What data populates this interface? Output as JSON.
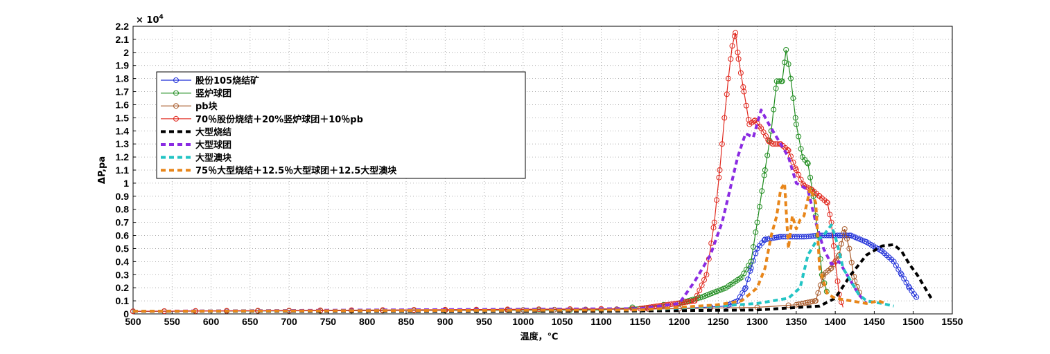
{
  "chart_data": {
    "type": "line",
    "xlabel": "温度，℃",
    "ylabel": "ΔP,pa",
    "y_multiplier": "× 10",
    "y_multiplier_exp": "4",
    "xlim": [
      500,
      1550
    ],
    "ylim": [
      0,
      2.2
    ],
    "x_ticks": [
      500,
      550,
      600,
      650,
      700,
      750,
      800,
      850,
      900,
      950,
      1000,
      1050,
      1100,
      1150,
      1200,
      1250,
      1300,
      1350,
      1400,
      1450,
      1500,
      1550
    ],
    "y_ticks": [
      0,
      0.1,
      0.2,
      0.3,
      0.4,
      0.5,
      0.6,
      0.7,
      0.8,
      0.9,
      1,
      1.1,
      1.2,
      1.3,
      1.4,
      1.5,
      1.6,
      1.7,
      1.8,
      1.9,
      2,
      2.1,
      2.2
    ],
    "grid": true,
    "legend_position": "top-left",
    "series": [
      {
        "name": "股份105烧结矿",
        "color": "#1f2fd8",
        "style": "circle-line",
        "points": [
          [
            500,
            0.02
          ],
          [
            1000,
            0.03
          ],
          [
            1200,
            0.04
          ],
          [
            1260,
            0.06
          ],
          [
            1275,
            0.1
          ],
          [
            1285,
            0.2
          ],
          [
            1292,
            0.35
          ],
          [
            1300,
            0.5
          ],
          [
            1310,
            0.57
          ],
          [
            1330,
            0.59
          ],
          [
            1360,
            0.59
          ],
          [
            1380,
            0.6
          ],
          [
            1400,
            0.6
          ],
          [
            1420,
            0.6
          ],
          [
            1440,
            0.55
          ],
          [
            1460,
            0.48
          ],
          [
            1475,
            0.4
          ],
          [
            1485,
            0.3
          ],
          [
            1495,
            0.2
          ],
          [
            1505,
            0.12
          ]
        ]
      },
      {
        "name": "竖炉球团",
        "color": "#1e8c1e",
        "style": "circle-line",
        "points": [
          [
            500,
            0.02
          ],
          [
            1100,
            0.03
          ],
          [
            1200,
            0.08
          ],
          [
            1230,
            0.13
          ],
          [
            1260,
            0.2
          ],
          [
            1280,
            0.28
          ],
          [
            1292,
            0.4
          ],
          [
            1300,
            0.7
          ],
          [
            1310,
            1.1
          ],
          [
            1318,
            1.4
          ],
          [
            1325,
            1.78
          ],
          [
            1332,
            1.78
          ],
          [
            1337,
            2.02
          ],
          [
            1343,
            1.8
          ],
          [
            1350,
            1.45
          ],
          [
            1358,
            1.2
          ],
          [
            1365,
            1.15
          ],
          [
            1372,
            0.9
          ],
          [
            1378,
            0.6
          ],
          [
            1383,
            0.3
          ],
          [
            1390,
            0.15
          ]
        ]
      },
      {
        "name": "pb块",
        "color": "#a85a2a",
        "style": "circle-line",
        "points": [
          [
            500,
            0.02
          ],
          [
            1000,
            0.03
          ],
          [
            1200,
            0.04
          ],
          [
            1300,
            0.05
          ],
          [
            1350,
            0.07
          ],
          [
            1375,
            0.1
          ],
          [
            1385,
            0.3
          ],
          [
            1395,
            0.35
          ],
          [
            1405,
            0.45
          ],
          [
            1412,
            0.65
          ],
          [
            1418,
            0.5
          ],
          [
            1425,
            0.25
          ],
          [
            1432,
            0.15
          ]
        ]
      },
      {
        "name": "70％股份烧结＋20%竖炉球团＋10％pb",
        "color": "#e0281e",
        "style": "circle-line",
        "points": [
          [
            500,
            0.02
          ],
          [
            1150,
            0.04
          ],
          [
            1220,
            0.1
          ],
          [
            1235,
            0.3
          ],
          [
            1245,
            0.7
          ],
          [
            1252,
            1.1
          ],
          [
            1258,
            1.5
          ],
          [
            1263,
            1.8
          ],
          [
            1268,
            2.05
          ],
          [
            1272,
            2.15
          ],
          [
            1276,
            1.95
          ],
          [
            1283,
            1.7
          ],
          [
            1290,
            1.45
          ],
          [
            1297,
            1.48
          ],
          [
            1305,
            1.42
          ],
          [
            1315,
            1.32
          ],
          [
            1320,
            1.3
          ],
          [
            1330,
            1.3
          ],
          [
            1340,
            1.25
          ],
          [
            1350,
            1.1
          ],
          [
            1360,
            0.98
          ],
          [
            1370,
            0.95
          ],
          [
            1380,
            0.9
          ],
          [
            1390,
            0.85
          ],
          [
            1395,
            0.7
          ],
          [
            1400,
            0.4
          ],
          [
            1405,
            0.15
          ],
          [
            1410,
            0.05
          ]
        ]
      },
      {
        "name": "大型烧结",
        "color": "#000000",
        "style": "dash",
        "points": [
          [
            500,
            0.02
          ],
          [
            1100,
            0.02
          ],
          [
            1300,
            0.03
          ],
          [
            1380,
            0.06
          ],
          [
            1400,
            0.12
          ],
          [
            1420,
            0.3
          ],
          [
            1440,
            0.45
          ],
          [
            1460,
            0.52
          ],
          [
            1475,
            0.53
          ],
          [
            1485,
            0.48
          ],
          [
            1495,
            0.38
          ],
          [
            1505,
            0.3
          ],
          [
            1515,
            0.2
          ],
          [
            1525,
            0.1
          ]
        ]
      },
      {
        "name": "大型球团",
        "color": "#8a2be2",
        "style": "dash",
        "points": [
          [
            500,
            0.02
          ],
          [
            1150,
            0.04
          ],
          [
            1200,
            0.08
          ],
          [
            1220,
            0.25
          ],
          [
            1240,
            0.45
          ],
          [
            1255,
            0.7
          ],
          [
            1265,
            0.95
          ],
          [
            1275,
            1.2
          ],
          [
            1285,
            1.38
          ],
          [
            1295,
            1.35
          ],
          [
            1305,
            1.56
          ],
          [
            1315,
            1.45
          ],
          [
            1325,
            1.35
          ],
          [
            1340,
            1.2
          ],
          [
            1350,
            1.0
          ],
          [
            1365,
            0.95
          ],
          [
            1375,
            0.7
          ],
          [
            1385,
            0.5
          ],
          [
            1395,
            0.38
          ],
          [
            1405,
            0.4
          ],
          [
            1415,
            0.3
          ],
          [
            1430,
            0.15
          ],
          [
            1440,
            0.08
          ]
        ]
      },
      {
        "name": "大型澳块",
        "color": "#22c4c4",
        "style": "dash",
        "points": [
          [
            500,
            0.02
          ],
          [
            1150,
            0.03
          ],
          [
            1250,
            0.06
          ],
          [
            1300,
            0.08
          ],
          [
            1340,
            0.12
          ],
          [
            1355,
            0.2
          ],
          [
            1365,
            0.45
          ],
          [
            1375,
            0.55
          ],
          [
            1385,
            0.6
          ],
          [
            1395,
            0.68
          ],
          [
            1402,
            0.55
          ],
          [
            1410,
            0.35
          ],
          [
            1420,
            0.25
          ],
          [
            1430,
            0.15
          ],
          [
            1440,
            0.1
          ],
          [
            1460,
            0.08
          ],
          [
            1475,
            0.06
          ]
        ]
      },
      {
        "name": "75％大型烧结＋12.5％大型球团＋12.5大型澳块",
        "color": "#e8861a",
        "style": "dash",
        "points": [
          [
            500,
            0.02
          ],
          [
            1150,
            0.03
          ],
          [
            1250,
            0.07
          ],
          [
            1280,
            0.1
          ],
          [
            1300,
            0.2
          ],
          [
            1310,
            0.35
          ],
          [
            1318,
            0.6
          ],
          [
            1325,
            0.75
          ],
          [
            1330,
            0.95
          ],
          [
            1335,
            1.0
          ],
          [
            1340,
            0.5
          ],
          [
            1345,
            0.75
          ],
          [
            1350,
            0.65
          ],
          [
            1355,
            0.72
          ],
          [
            1360,
            0.75
          ],
          [
            1368,
            0.96
          ],
          [
            1375,
            0.85
          ],
          [
            1380,
            0.35
          ],
          [
            1390,
            0.15
          ],
          [
            1400,
            0.12
          ],
          [
            1420,
            0.1
          ],
          [
            1440,
            0.08
          ],
          [
            1455,
            0.1
          ],
          [
            1465,
            0.08
          ]
        ]
      }
    ]
  }
}
